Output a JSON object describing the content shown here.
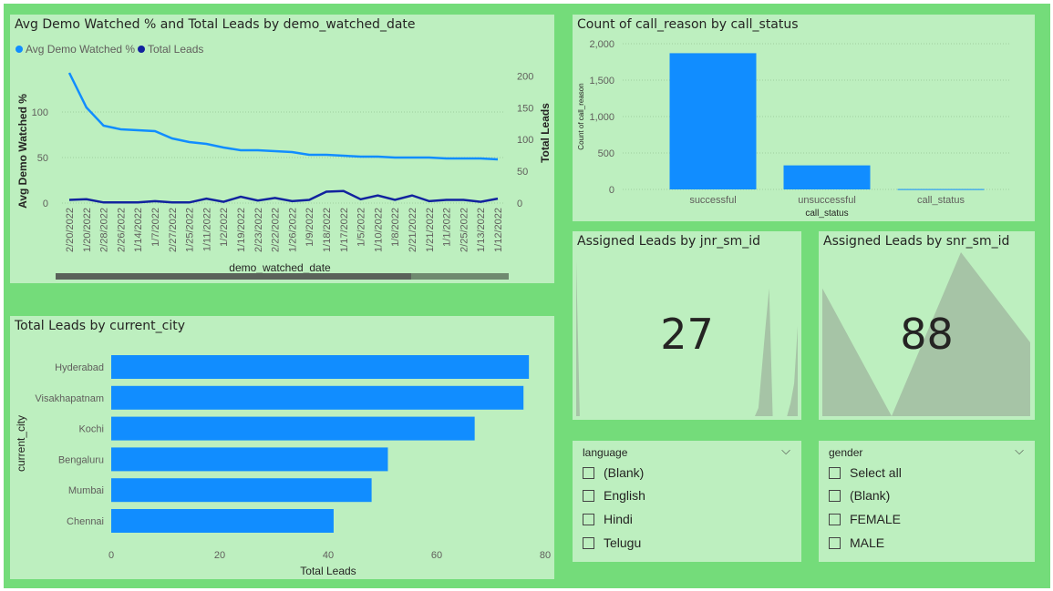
{
  "colors": {
    "background": "#74dc7a",
    "panel": "#bdefbf",
    "series_light": "#118dff",
    "series_dark": "#12239e",
    "bar": "#118dff",
    "area": "#a6c4a6"
  },
  "panels": {
    "line": {
      "title": "Avg Demo Watched % and Total Leads by demo_watched_date"
    },
    "column": {
      "title": "Count of call_reason by call_status"
    },
    "jnr": {
      "title": "Assigned Leads by jnr_sm_id",
      "kpi": "27"
    },
    "snr": {
      "title": "Assigned Leads by snr_sm_id",
      "kpi": "88"
    },
    "bar": {
      "title": "Total Leads by current_city"
    }
  },
  "slicers": {
    "language": {
      "header": "language",
      "chevron_icon": "chevron-down-icon",
      "items": [
        "(Blank)",
        "English",
        "Hindi",
        "Telugu"
      ]
    },
    "gender": {
      "header": "gender",
      "chevron_icon": "chevron-down-icon",
      "items": [
        "Select all",
        "(Blank)",
        "FEMALE",
        "MALE"
      ]
    }
  },
  "chart_data": [
    {
      "type": "line",
      "title": "Avg Demo Watched % and Total Leads by demo_watched_date",
      "xlabel": "demo_watched_date",
      "ylabel": "Avg Demo Watched %",
      "y2label": "Total Leads",
      "legend_position": "top-left",
      "categories": [
        "2/20/2022",
        "1/20/2022",
        "2/28/2022",
        "2/26/2022",
        "1/14/2022",
        "1/7/2022",
        "2/27/2022",
        "1/25/2022",
        "1/11/2022",
        "1/2/2022",
        "1/19/2022",
        "2/23/2022",
        "2/22/2022",
        "1/26/2022",
        "1/9/2022",
        "1/18/2022",
        "1/17/2022",
        "1/5/2022",
        "1/10/2022",
        "1/8/2022",
        "2/21/2022",
        "1/21/2022",
        "1/1/2022",
        "2/25/2022",
        "1/13/2022",
        "1/12/2022"
      ],
      "y_ticks": [
        0,
        50,
        100
      ],
      "y2_ticks": [
        0,
        50,
        100,
        150,
        200
      ],
      "series": [
        {
          "name": "Avg Demo Watched %",
          "axis": "left",
          "values": [
            143,
            105,
            85,
            81,
            80,
            79,
            71,
            67,
            65,
            61,
            58,
            58,
            57,
            56,
            53,
            53,
            52,
            51,
            51,
            50,
            50,
            50,
            49,
            49,
            49,
            48
          ]
        },
        {
          "name": "Total Leads",
          "axis": "right",
          "values": [
            5,
            6,
            1,
            1,
            1,
            3,
            1,
            1,
            7,
            2,
            10,
            4,
            8,
            3,
            5,
            18,
            19,
            6,
            12,
            5,
            12,
            3,
            5,
            5,
            2,
            7
          ]
        }
      ],
      "scrollbar": "horizontal"
    },
    {
      "type": "bar",
      "title": "Count of call_reason by call_status",
      "xlabel": "call_status",
      "ylabel": "Count of call_reason",
      "categories": [
        "successful",
        "unsuccessful",
        "call_status"
      ],
      "values": [
        1870,
        330,
        5
      ],
      "y_ticks": [
        "0",
        "500",
        "1,000",
        "1,500",
        "2,000"
      ],
      "ylim": [
        0,
        2000
      ]
    },
    {
      "type": "area",
      "title": "Assigned Leads by jnr_sm_id",
      "values": [
        0.95,
        0.0,
        0.0,
        0.0,
        0.0,
        0.0,
        0.0,
        0.0,
        0.0,
        0.0,
        0.0,
        0.0,
        0.0,
        0.0,
        0.0,
        0.0,
        0.0,
        0.0,
        0.0,
        0.0,
        0.0,
        0.0,
        0.0,
        0.0,
        0.0,
        0.0,
        0.0,
        0.0,
        0.0,
        0.0,
        0.0,
        0.0,
        0.0,
        0.0,
        0.0,
        0.0,
        0.0,
        0.0,
        0.0,
        0.0,
        0.0,
        0.0,
        0.0,
        0.0,
        0.0,
        0.0,
        0.0,
        0.0,
        0.0,
        0.0,
        0.0,
        0.05,
        0.3,
        0.55,
        0.78,
        0.0,
        0.0,
        0.0,
        0.0,
        0.0,
        0.08,
        0.2,
        0.55
      ]
    },
    {
      "type": "area",
      "title": "Assigned Leads by snr_sm_id",
      "values": [
        0.78,
        0.0,
        1.0,
        0.45
      ]
    },
    {
      "type": "bar",
      "orientation": "horizontal",
      "title": "Total Leads by current_city",
      "xlabel": "Total Leads",
      "ylabel": "current_city",
      "categories": [
        "Hyderabad",
        "Visakhapatnam",
        "Kochi",
        "Bengaluru",
        "Mumbai",
        "Chennai"
      ],
      "values": [
        77,
        76,
        67,
        51,
        48,
        41
      ],
      "x_ticks": [
        0,
        20,
        40,
        60,
        80
      ],
      "xlim": [
        0,
        80
      ]
    }
  ]
}
